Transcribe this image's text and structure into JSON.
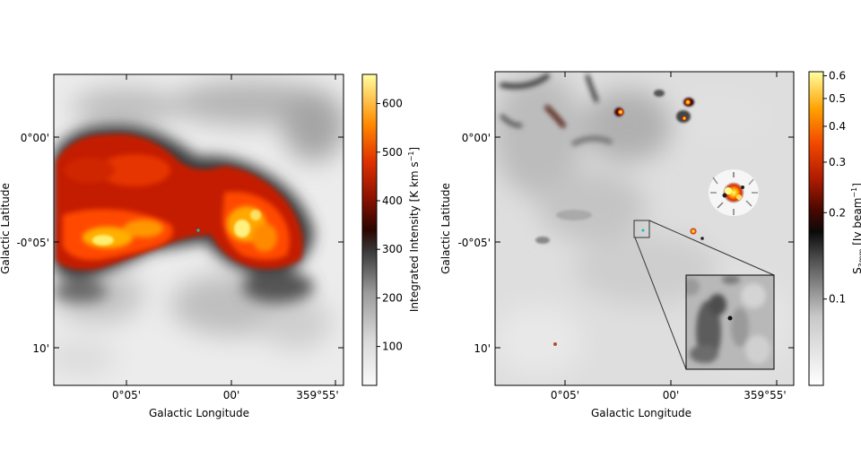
{
  "chart_data": [
    {
      "type": "heatmap",
      "xlabel": "Galactic Longitude",
      "ylabel": "Galactic Latitude",
      "x_ticks": [
        "0°05'",
        "00'",
        "359°55'"
      ],
      "y_ticks": [
        "0°00'",
        "-0°05'",
        "10'"
      ],
      "colorbar": {
        "label_main": "Integrated Intensity [K km s",
        "label_sup": "−1",
        "label_end": "]",
        "ticks": [
          100,
          200,
          300,
          400,
          500,
          600
        ],
        "range": [
          20,
          660
        ],
        "scale": "linear",
        "colormap": [
          "#f7f7f7",
          "#c8c8c8",
          "#8c8c8c",
          "#303030",
          "#5a0a00",
          "#c42200",
          "#ff5a00",
          "#ffb000",
          "#ffff90"
        ]
      }
    },
    {
      "type": "heatmap",
      "xlabel": "Galactic Longitude",
      "ylabel": "Galactic Latitude",
      "x_ticks": [
        "0°05'",
        "00'",
        "359°55'"
      ],
      "y_ticks": [
        "0°00'",
        "-0°05'",
        "10'"
      ],
      "inset": true,
      "colorbar": {
        "label_main": "S",
        "label_sub": "3mm",
        "label_mid": " [Jy beam",
        "label_sup": "−1",
        "label_end": "]",
        "ticks": [
          0.1,
          0.2,
          0.3,
          0.4,
          0.5,
          0.6
        ],
        "tick_labels": [
          "0.1",
          "0.2",
          "0.3",
          "0.4",
          "0.5",
          "0.6"
        ],
        "range": [
          0.05,
          0.62
        ],
        "scale": "log",
        "colormap": [
          "#ffffff",
          "#d0d0d0",
          "#909090",
          "#303030",
          "#5a0a00",
          "#c42200",
          "#ff5a00",
          "#ffb000",
          "#ffff90"
        ]
      }
    }
  ]
}
